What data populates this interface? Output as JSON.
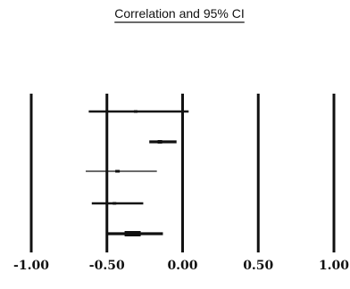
{
  "chart_data": {
    "type": "forest",
    "title": "Correlation and 95% CI",
    "xlim": [
      -1.0,
      1.0
    ],
    "x_ticks": [
      -1.0,
      -0.5,
      0.0,
      0.5,
      1.0
    ],
    "x_tick_labels": [
      "-1.00",
      "-0.50",
      "0.00",
      "0.50",
      "1.00"
    ],
    "reference_lines": [
      -1.0,
      -0.5,
      0.0,
      0.5,
      1.0
    ],
    "studies": [
      {
        "estimate": -0.31,
        "ci_low": -0.62,
        "ci_high": 0.04
      },
      {
        "estimate": -0.15,
        "ci_low": -0.22,
        "ci_high": -0.04
      },
      {
        "estimate": -0.43,
        "ci_low": -0.64,
        "ci_high": -0.17
      },
      {
        "estimate": -0.45,
        "ci_low": -0.6,
        "ci_high": -0.26
      },
      {
        "estimate": -0.33,
        "ci_low": -0.5,
        "ci_high": -0.13
      }
    ],
    "colors": {
      "ink": "#111111",
      "background": "#ffffff"
    }
  }
}
